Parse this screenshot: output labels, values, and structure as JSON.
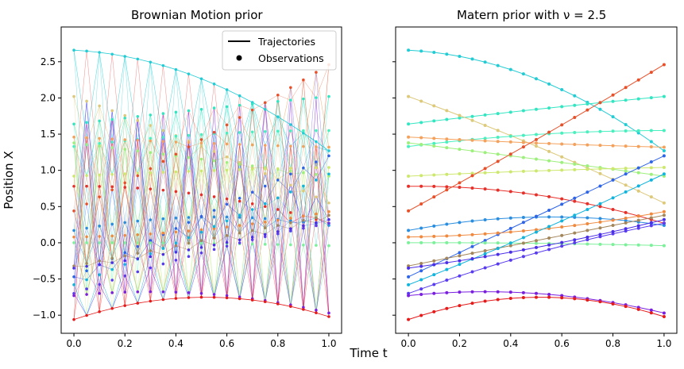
{
  "figure": {
    "xlabel": "Time t",
    "ylabel": "Position X"
  },
  "chart_data": [
    {
      "type": "line",
      "title": "Brownian Motion prior",
      "xlabel": "Time t",
      "ylabel": "Position X",
      "xlim": [
        -0.05,
        1.05
      ],
      "ylim": [
        -1.25,
        2.98
      ],
      "xticks": [
        0.0,
        0.2,
        0.4,
        0.6,
        0.8,
        1.0
      ],
      "xtick_labels": [
        "0.0",
        "0.2",
        "0.4",
        "0.6",
        "0.8",
        "1.0"
      ],
      "yticks": [
        -1.0,
        -0.5,
        0.0,
        0.5,
        1.0,
        1.5,
        2.0,
        2.5
      ],
      "ytick_labels": [
        "−1.0",
        "−0.5",
        "0.0",
        "0.5",
        "1.0",
        "1.5",
        "2.0",
        "2.5"
      ],
      "legend": {
        "position": "top-right",
        "entries": [
          "Trajectories",
          "Observations"
        ]
      },
      "series_note": "crossing piecewise-linear paths linking endpoint observations of the same trajectories shown in the right panel"
    },
    {
      "type": "line",
      "title": "Matern prior with ν = 2.5",
      "xlabel": "Time t",
      "xlim": [
        -0.05,
        1.05
      ],
      "ylim": [
        -1.25,
        2.98
      ],
      "xticks": [
        0.0,
        0.2,
        0.4,
        0.6,
        0.8,
        1.0
      ],
      "xtick_labels": [
        "0.0",
        "0.2",
        "0.4",
        "0.6",
        "0.8",
        "1.0"
      ],
      "yticks": [
        -1.0,
        -0.5,
        0.0,
        0.5,
        1.0,
        1.5,
        2.0,
        2.5
      ],
      "ytick_labels_visible": false,
      "sample_times": [
        0.0,
        0.05,
        0.1,
        0.15,
        0.2,
        0.25,
        0.3,
        0.35,
        0.4,
        0.45,
        0.5,
        0.55,
        0.6,
        0.65,
        0.7,
        0.75,
        0.8,
        0.85,
        0.9,
        0.95,
        1.0
      ],
      "series": [
        {
          "name": "traj-1",
          "color": "#22ccd4",
          "start": 2.66,
          "end": 1.27,
          "curve": 1.2
        },
        {
          "name": "traj-2",
          "color": "#33e6c2",
          "start": 1.64,
          "end": 2.02,
          "curve": 0.05
        },
        {
          "name": "traj-3",
          "color": "#dcc97a",
          "start": 2.02,
          "end": 0.55,
          "curve": 0.2
        },
        {
          "name": "traj-4",
          "color": "#48f0c0",
          "start": 1.33,
          "end": 1.55,
          "curve": 0.22
        },
        {
          "name": "traj-5",
          "color": "#f4a15c",
          "start": 1.46,
          "end": 1.32,
          "curve": -0.05
        },
        {
          "name": "traj-6",
          "color": "#9ef07c",
          "start": 1.38,
          "end": 0.92,
          "curve": 0.02
        },
        {
          "name": "traj-7",
          "color": "#cde86e",
          "start": 0.92,
          "end": 1.04,
          "curve": 0.05
        },
        {
          "name": "traj-8",
          "color": "#e8302a",
          "start": 0.78,
          "end": 0.27,
          "curve": 0.55
        },
        {
          "name": "traj-9",
          "color": "#e8502a",
          "start": 0.44,
          "end": 2.46,
          "curve": -0.1
        },
        {
          "name": "traj-10",
          "color": "#2a8ee0",
          "start": 0.17,
          "end": 0.24,
          "curve": 0.6
        },
        {
          "name": "traj-11",
          "color": "#2e64e8",
          "start": -0.47,
          "end": 1.2,
          "curve": 0.0
        },
        {
          "name": "traj-12",
          "color": "#f0893e",
          "start": 0.08,
          "end": 0.43,
          "curve": -0.3
        },
        {
          "name": "traj-13",
          "color": "#7cf09a",
          "start": 0.0,
          "end": -0.04,
          "curve": 0.05
        },
        {
          "name": "traj-14",
          "color": "#a3865a",
          "start": -0.32,
          "end": 0.38,
          "curve": 0.0
        },
        {
          "name": "traj-15",
          "color": "#10b4dc",
          "start": -0.58,
          "end": 0.95,
          "curve": -0.15
        },
        {
          "name": "traj-16",
          "color": "#5a3cf0",
          "start": -0.7,
          "end": 0.27,
          "curve": 0.3
        },
        {
          "name": "traj-17",
          "color": "#4b2ee8",
          "start": -0.35,
          "end": 0.32,
          "curve": -0.2
        },
        {
          "name": "traj-18",
          "color": "#7a1ee0",
          "start": -0.73,
          "end": -0.97,
          "curve": 0.6
        },
        {
          "name": "traj-19",
          "color": "#e61a1a",
          "start": -1.06,
          "end": -1.02,
          "curve": 1.15
        }
      ]
    }
  ]
}
